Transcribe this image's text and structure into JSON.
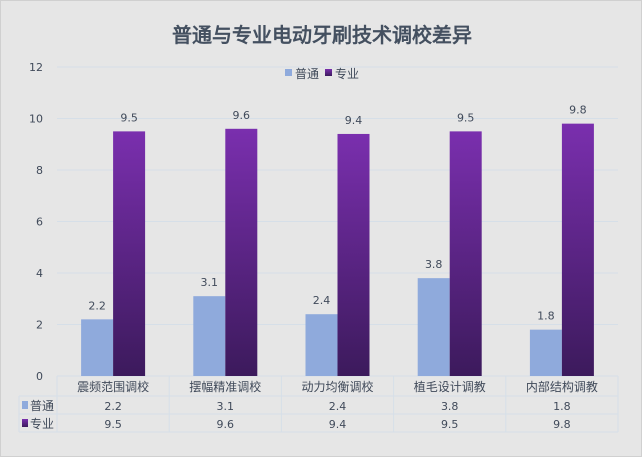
{
  "chart_data": {
    "type": "bar",
    "title": "普通与专业电动牙刷技术调校差异",
    "categories": [
      "震频范围调校",
      "摆幅精准调校",
      "动力均衡调校",
      "植毛设计调教",
      "内部结构调教"
    ],
    "series": [
      {
        "name": "普通",
        "values": [
          2.2,
          3.1,
          2.4,
          3.8,
          1.8
        ],
        "color": "#8faadc"
      },
      {
        "name": "专业",
        "values": [
          9.5,
          9.6,
          9.4,
          9.5,
          9.8
        ],
        "color": "#7a2fae",
        "color_bottom": "#3c1a5c"
      }
    ],
    "ylim": [
      0,
      12
    ],
    "yticks": [
      0,
      2,
      4,
      6,
      8,
      10,
      12
    ],
    "grid": true,
    "legend": "top",
    "data_table": true
  }
}
